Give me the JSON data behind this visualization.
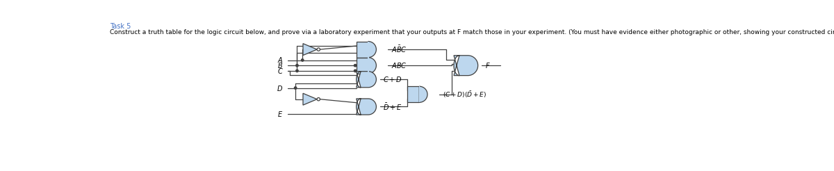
{
  "title": "Task 5",
  "description": "Construct a truth table for the logic circuit below, and prove via a laboratory experiment that your outputs at F match those in your experiment. (You must have evidence either photographic or other, showing your constructed circuit).",
  "bg_color": "#ffffff",
  "title_color": "#4472C4",
  "text_color": "#000000",
  "gate_fill": "#BDD7EE",
  "gate_edge": "#404040",
  "wire_color": "#404040",
  "figsize": [
    12.0,
    2.46
  ],
  "dpi": 100,
  "xlim": [
    0,
    12
  ],
  "ylim": [
    0,
    2.46
  ],
  "title_fontsize": 7,
  "desc_fontsize": 6.5,
  "label_fontsize": 7
}
